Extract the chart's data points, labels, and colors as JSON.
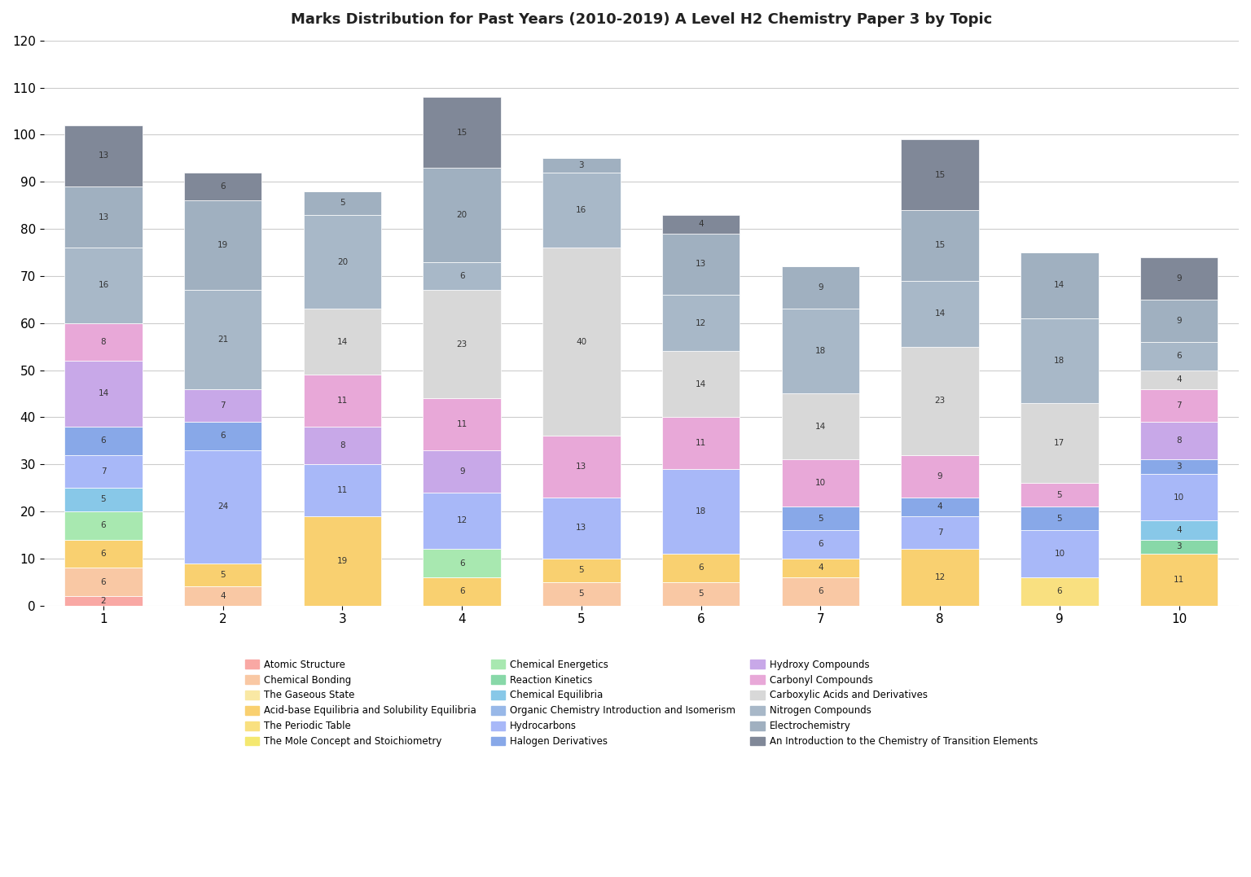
{
  "title": "Marks Distribution for Past Years (2010-2019) A Level H2 Chemistry Paper 3 by Topic",
  "categories": [
    1,
    2,
    3,
    4,
    5,
    6,
    7,
    8,
    9,
    10
  ],
  "topics": [
    "Atomic Structure",
    "Chemical Bonding",
    "The Gaseous State",
    "Acid-base Equilibria and Solubility Equilibria",
    "The Periodic Table",
    "The Mole Concept and Stoichiometry",
    "Chemical Energetics",
    "Reaction Kinetics",
    "Chemical Equilibria",
    "Organic Chemistry Introduction and Isomerism",
    "Hydrocarbons",
    "Halogen Derivatives",
    "Hydroxy Compounds",
    "Carbonyl Compounds",
    "Carboxylic Acids and Derivatives",
    "Nitrogen Compounds",
    "Electrochemistry",
    "An Introduction to the Chemistry of Transition Elements"
  ],
  "colors": [
    "#f4a7a3",
    "#f4a7a3",
    "#f4c89a",
    "#f4c89a",
    "#f4e59a",
    "#f4e59a",
    "#b8e8b8",
    "#b8e8b8",
    "#b8e8b8",
    "#a3d4f4",
    "#a3c8f4",
    "#a3b8e8",
    "#d4a3f4",
    "#d4a3f4",
    "#d4d4d4",
    "#a8bcc8",
    "#a8bcc8",
    "#a8b8c8"
  ],
  "bar_colors": [
    "#f4a7a3",
    "#f8c8a8",
    "#f8e8a8",
    "#a8e8b8",
    "#a8d8e8",
    "#a8b8e8",
    "#c8a8e8",
    "#d8d4e8",
    "#c8d8d8",
    "#f4c8a8",
    "#a8c8a8",
    "#b8d8e8",
    "#d8a8c8",
    "#e8c8e8",
    "#d8d8d8",
    "#a8b8c8",
    "#b8c8d8",
    "#98a8b8"
  ],
  "data": {
    "Atomic Structure": [
      2,
      0,
      0,
      0,
      0,
      0,
      0,
      0,
      0,
      0
    ],
    "Chemical Bonding": [
      6,
      4,
      0,
      0,
      5,
      5,
      6,
      0,
      0,
      0
    ],
    "The Gaseous State": [
      0,
      0,
      0,
      0,
      0,
      0,
      0,
      0,
      0,
      0
    ],
    "Acid-base Equilibria and Solubility Equilibria": [
      6,
      5,
      19,
      6,
      5,
      6,
      4,
      12,
      0,
      11
    ],
    "The Periodic Table": [
      0,
      0,
      0,
      0,
      0,
      0,
      0,
      0,
      6,
      0
    ],
    "The Mole Concept and Stoichiometry": [
      0,
      0,
      0,
      0,
      0,
      0,
      0,
      0,
      0,
      0
    ],
    "Chemical Energetics": [
      6,
      0,
      0,
      6,
      0,
      0,
      0,
      0,
      0,
      0
    ],
    "Reaction Kinetics": [
      0,
      0,
      0,
      0,
      0,
      0,
      0,
      0,
      0,
      3
    ],
    "Chemical Equilibria": [
      5,
      0,
      0,
      0,
      0,
      0,
      0,
      0,
      0,
      4
    ],
    "Organic Chemistry Introduction and Isomerism": [
      0,
      0,
      0,
      0,
      0,
      0,
      0,
      0,
      0,
      0
    ],
    "Hydrocarbons": [
      7,
      24,
      11,
      12,
      13,
      18,
      6,
      7,
      10,
      10
    ],
    "Halogen Derivatives": [
      6,
      6,
      0,
      0,
      0,
      0,
      5,
      4,
      5,
      3
    ],
    "Hydroxy Compounds": [
      14,
      7,
      8,
      9,
      0,
      0,
      0,
      0,
      0,
      8
    ],
    "Carbonyl Compounds": [
      8,
      0,
      11,
      11,
      13,
      11,
      10,
      9,
      5,
      7
    ],
    "Carboxylic Acids and Derivatives": [
      0,
      0,
      14,
      23,
      40,
      14,
      14,
      23,
      17,
      4
    ],
    "Nitrogen Compounds": [
      16,
      21,
      20,
      6,
      16,
      12,
      18,
      14,
      18,
      6
    ],
    "Electrochemistry": [
      13,
      19,
      5,
      20,
      3,
      13,
      9,
      15,
      14,
      9
    ],
    "An Introduction to the Chemistry of Transition Elements": [
      13,
      6,
      0,
      15,
      0,
      4,
      0,
      15,
      0,
      9
    ]
  },
  "segment_colors": {
    "Atomic Structure": "#f9a8a4",
    "Chemical Bonding": "#f9c8a4",
    "The Gaseous State": "#f9e8a4",
    "Acid-base Equilibria and Solubility Equilibria": "#f9d070",
    "The Periodic Table": "#f9e080",
    "The Mole Concept and Stoichiometry": "#f4e870",
    "Chemical Energetics": "#a8e8b0",
    "Reaction Kinetics": "#88d8a8",
    "Chemical Equilibria": "#88c8e8",
    "Organic Chemistry Introduction and Isomerism": "#98b8e8",
    "Hydrocarbons": "#a8b8f8",
    "Halogen Derivatives": "#88a8e8",
    "Hydroxy Compounds": "#c8a8e8",
    "Carbonyl Compounds": "#e8a8d8",
    "Carboxylic Acids and Derivatives": "#d8d8d8",
    "Nitrogen Compounds": "#a8b8c8",
    "Electrochemistry": "#a0b0c0",
    "An Introduction to the Chemistry of Transition Elements": "#808898"
  }
}
